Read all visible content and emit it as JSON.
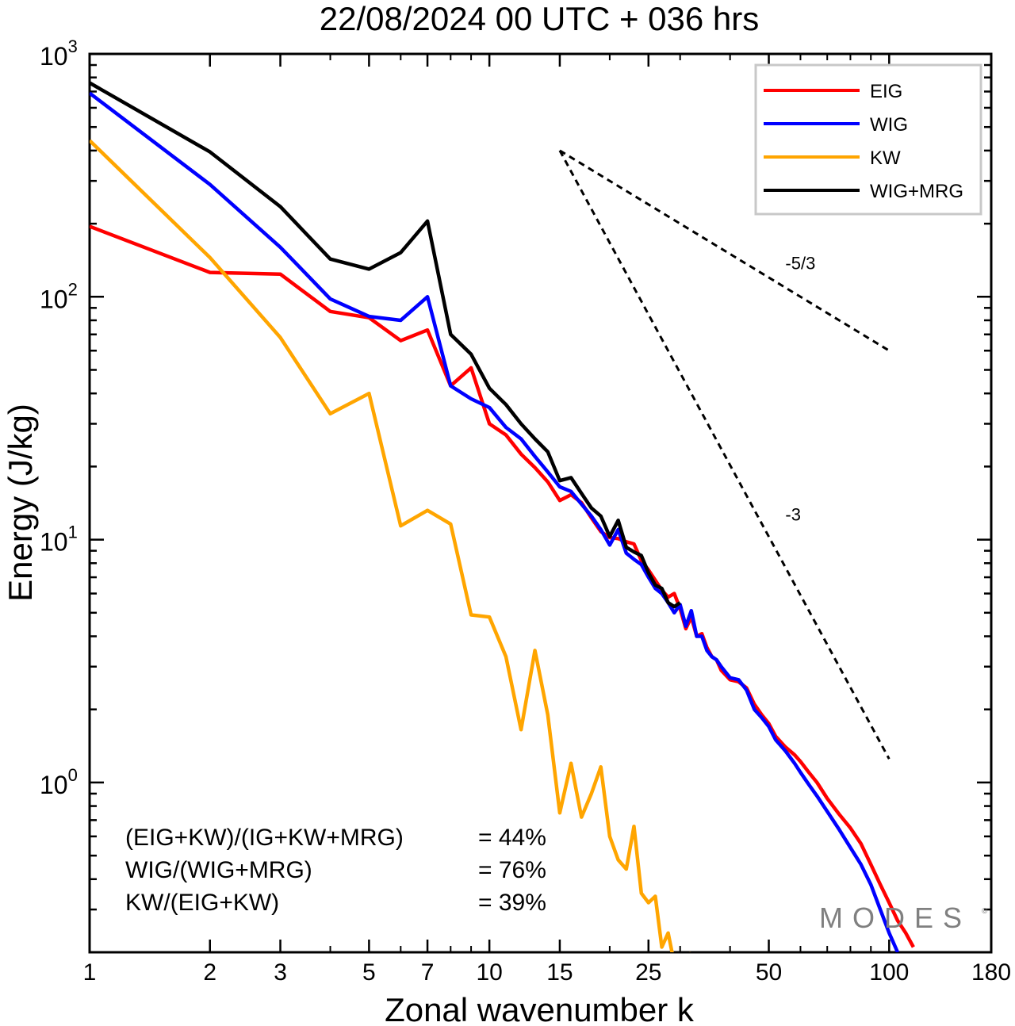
{
  "chart_data": {
    "type": "line",
    "title": "22/08/2024  00 UTC  + 036 hrs",
    "xlabel": "Zonal wavenumber k",
    "ylabel": "Energy (J/kg)",
    "xscale": "log",
    "yscale": "log",
    "xlim": [
      1,
      180
    ],
    "ylim": [
      0.2,
      1000
    ],
    "grid": false,
    "x_ticks": [
      1,
      2,
      3,
      5,
      7,
      10,
      15,
      25,
      50,
      100,
      180
    ],
    "x_tick_labels": [
      "1",
      "2",
      "3",
      "5",
      "7",
      "10",
      "15",
      "25",
      "50",
      "100",
      "180"
    ],
    "y_ticks": [
      1,
      10,
      100,
      1000
    ],
    "y_tick_labels": [
      {
        "base": "10",
        "exp": "0"
      },
      {
        "base": "10",
        "exp": "1"
      },
      {
        "base": "10",
        "exp": "2"
      },
      {
        "base": "10",
        "exp": "3"
      }
    ],
    "legend_position": "top-right",
    "series": [
      {
        "name": "EIG",
        "color": "#ff0000",
        "points": [
          [
            1,
            195
          ],
          [
            2,
            126
          ],
          [
            3,
            124
          ],
          [
            4,
            87
          ],
          [
            5,
            82
          ],
          [
            6,
            66
          ],
          [
            7,
            73
          ],
          [
            8,
            43
          ],
          [
            9,
            51
          ],
          [
            10,
            30
          ],
          [
            11,
            27
          ],
          [
            12,
            22.5
          ],
          [
            13,
            19.8
          ],
          [
            14,
            17.3
          ],
          [
            15,
            14.5
          ],
          [
            16,
            15.3
          ],
          [
            17,
            14.2
          ],
          [
            18,
            12.3
          ],
          [
            19,
            10.8
          ],
          [
            20,
            10.2
          ],
          [
            21,
            10.1
          ],
          [
            22,
            9.8
          ],
          [
            23,
            9.6
          ],
          [
            24,
            8.2
          ],
          [
            25,
            7.5
          ],
          [
            26,
            6.8
          ],
          [
            27,
            6.2
          ],
          [
            28,
            5.8
          ],
          [
            29,
            6.0
          ],
          [
            30,
            5.2
          ],
          [
            31,
            4.3
          ],
          [
            32,
            4.8
          ],
          [
            33,
            4.0
          ],
          [
            34,
            4.1
          ],
          [
            35,
            3.6
          ],
          [
            36,
            3.3
          ],
          [
            37,
            3.2
          ],
          [
            38,
            2.9
          ],
          [
            40,
            2.65
          ],
          [
            42,
            2.6
          ],
          [
            44,
            2.45
          ],
          [
            46,
            2.1
          ],
          [
            48,
            1.9
          ],
          [
            50,
            1.75
          ],
          [
            52,
            1.55
          ],
          [
            55,
            1.4
          ],
          [
            58,
            1.3
          ],
          [
            60,
            1.22
          ],
          [
            63,
            1.1
          ],
          [
            66,
            1.0
          ],
          [
            70,
            0.86
          ],
          [
            75,
            0.74
          ],
          [
            80,
            0.65
          ],
          [
            85,
            0.56
          ],
          [
            90,
            0.46
          ],
          [
            95,
            0.38
          ],
          [
            100,
            0.32
          ],
          [
            105,
            0.27
          ],
          [
            110,
            0.24
          ],
          [
            115,
            0.21
          ]
        ]
      },
      {
        "name": "WIG",
        "color": "#0000ff",
        "points": [
          [
            1,
            690
          ],
          [
            2,
            290
          ],
          [
            3,
            160
          ],
          [
            4,
            98
          ],
          [
            5,
            83
          ],
          [
            6,
            80
          ],
          [
            7,
            100
          ],
          [
            8,
            43
          ],
          [
            9,
            38
          ],
          [
            10,
            35
          ],
          [
            11,
            29
          ],
          [
            12,
            26
          ],
          [
            13,
            22
          ],
          [
            14,
            19
          ],
          [
            15,
            16.5
          ],
          [
            16,
            15.8
          ],
          [
            17,
            14
          ],
          [
            18,
            12.5
          ],
          [
            19,
            11
          ],
          [
            20,
            9.5
          ],
          [
            21,
            11
          ],
          [
            22,
            8.8
          ],
          [
            23,
            8.3
          ],
          [
            24,
            7.9
          ],
          [
            25,
            7.0
          ],
          [
            26,
            6.3
          ],
          [
            27,
            6.0
          ],
          [
            28,
            5.5
          ],
          [
            29,
            5.0
          ],
          [
            30,
            5.4
          ],
          [
            31,
            4.4
          ],
          [
            32,
            5.1
          ],
          [
            33,
            4.0
          ],
          [
            34,
            4.0
          ],
          [
            35,
            3.5
          ],
          [
            36,
            3.3
          ],
          [
            37,
            3.2
          ],
          [
            38,
            3.0
          ],
          [
            40,
            2.7
          ],
          [
            42,
            2.65
          ],
          [
            44,
            2.4
          ],
          [
            46,
            2.0
          ],
          [
            48,
            1.85
          ],
          [
            50,
            1.7
          ],
          [
            52,
            1.5
          ],
          [
            55,
            1.35
          ],
          [
            58,
            1.2
          ],
          [
            60,
            1.1
          ],
          [
            63,
            0.98
          ],
          [
            66,
            0.88
          ],
          [
            70,
            0.76
          ],
          [
            75,
            0.64
          ],
          [
            80,
            0.54
          ],
          [
            85,
            0.46
          ],
          [
            90,
            0.38
          ],
          [
            95,
            0.3
          ],
          [
            100,
            0.24
          ],
          [
            105,
            0.2
          ]
        ]
      },
      {
        "name": "KW",
        "color": "#ffa500",
        "points": [
          [
            1,
            440
          ],
          [
            2,
            145
          ],
          [
            3,
            68
          ],
          [
            4,
            33
          ],
          [
            5,
            40
          ],
          [
            6,
            11.4
          ],
          [
            7,
            13.2
          ],
          [
            8,
            11.6
          ],
          [
            9,
            4.9
          ],
          [
            10,
            4.8
          ],
          [
            11,
            3.3
          ],
          [
            12,
            1.65
          ],
          [
            13,
            3.5
          ],
          [
            14,
            1.9
          ],
          [
            15,
            0.75
          ],
          [
            16,
            1.2
          ],
          [
            17,
            0.72
          ],
          [
            18,
            0.9
          ],
          [
            19,
            1.16
          ],
          [
            20,
            0.6
          ],
          [
            21,
            0.48
          ],
          [
            22,
            0.44
          ],
          [
            23,
            0.66
          ],
          [
            24,
            0.35
          ],
          [
            25,
            0.32
          ],
          [
            26,
            0.34
          ],
          [
            27,
            0.21
          ],
          [
            28,
            0.24
          ],
          [
            29,
            0.18
          ],
          [
            30,
            0.19
          ],
          [
            31,
            0.15
          ],
          [
            32,
            0.2
          ]
        ]
      },
      {
        "name": "WIG+MRG",
        "color": "#000000",
        "points": [
          [
            1,
            760
          ],
          [
            2,
            395
          ],
          [
            3,
            235
          ],
          [
            4,
            143
          ],
          [
            5,
            130
          ],
          [
            6,
            152
          ],
          [
            7,
            205
          ],
          [
            8,
            70
          ],
          [
            9,
            58
          ],
          [
            10,
            42
          ],
          [
            11,
            36
          ],
          [
            12,
            30
          ],
          [
            13,
            26
          ],
          [
            14,
            23
          ],
          [
            15,
            17.5
          ],
          [
            16,
            18
          ],
          [
            17,
            15.5
          ],
          [
            18,
            13.5
          ],
          [
            19,
            12.5
          ],
          [
            20,
            10.3
          ],
          [
            21,
            12
          ],
          [
            22,
            9.3
          ],
          [
            23,
            8.9
          ],
          [
            24,
            8.6
          ],
          [
            25,
            7.3
          ],
          [
            26,
            6.5
          ],
          [
            27,
            6.3
          ],
          [
            28,
            5.5
          ],
          [
            29,
            5.3
          ],
          [
            30,
            5.5
          ]
        ]
      }
    ],
    "reference_lines": [
      {
        "label": "-5/3",
        "points": [
          [
            15,
            400
          ],
          [
            100,
            60
          ]
        ],
        "label_at": [
          55,
          130
        ]
      },
      {
        "label": "-3",
        "points": [
          [
            15,
            400
          ],
          [
            100,
            1.25
          ]
        ],
        "label_at": [
          55,
          12
        ]
      }
    ],
    "annotations": [
      {
        "text": "(EIG+KW)/(IG+KW+MRG)",
        "value": "= 44%"
      },
      {
        "text": "WIG/(WIG+MRG)",
        "value": "= 76%"
      },
      {
        "text": "KW/(EIG+KW)",
        "value": "= 39%"
      }
    ],
    "watermark": "MODES"
  }
}
